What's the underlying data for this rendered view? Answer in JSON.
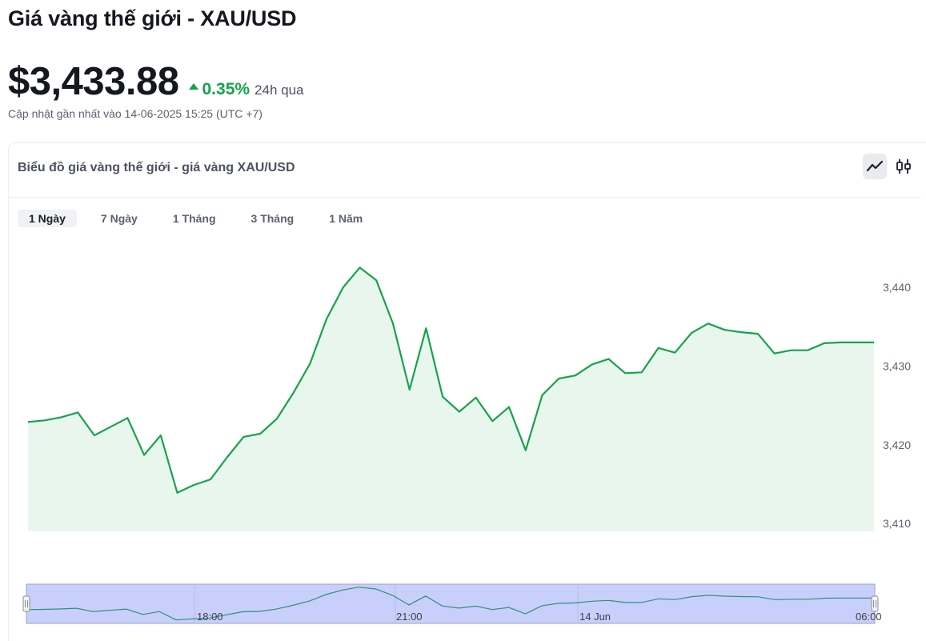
{
  "page": {
    "title": "Giá vàng thế giới - XAU/USD",
    "price": "$3,433.88",
    "change_pct": "0.35%",
    "change_period": "24h qua",
    "updated": "Cập nhật gần nhất vào 14-06-2025 15:25 (UTC +7)"
  },
  "card": {
    "title": "Biểu đồ giá vàng thế giới - giá vàng XAU/USD",
    "chart_types": [
      {
        "name": "line-chart-icon",
        "active": true
      },
      {
        "name": "candlestick-icon",
        "active": false
      }
    ],
    "ranges": [
      {
        "label": "1 Ngày",
        "active": true
      },
      {
        "label": "7 Ngày",
        "active": false
      },
      {
        "label": "1 Tháng",
        "active": false
      },
      {
        "label": "3 Tháng",
        "active": false
      },
      {
        "label": "1 Năm",
        "active": false
      }
    ]
  },
  "colors": {
    "line": "#16a34a",
    "area": "#e9f6ee",
    "navigator_fill": "#c9cffb",
    "navigator_line": "#2f8f7a"
  },
  "chart_data": {
    "type": "area",
    "title": "",
    "xlabel": "",
    "ylabel": "",
    "ylim": [
      3409,
      3446
    ],
    "y_ticks": [
      3410,
      3420,
      3430,
      3440
    ],
    "y_tick_labels": [
      "3,410",
      "3,420",
      "3,430",
      "3,440"
    ],
    "navigator_ticks": [
      "18:00",
      "21:00",
      "14 Jun",
      "06:00"
    ],
    "grid": false,
    "legend": "none",
    "values": [
      3422.9,
      3423.1,
      3423.5,
      3424.1,
      3421.2,
      3422.3,
      3423.4,
      3418.7,
      3421.2,
      3413.9,
      3414.9,
      3415.6,
      3418.4,
      3421.0,
      3421.4,
      3423.3,
      3426.6,
      3430.3,
      3436.0,
      3440.0,
      3442.5,
      3440.9,
      3435.4,
      3427.0,
      3434.8,
      3426.1,
      3424.2,
      3426.0,
      3423.0,
      3424.8,
      3419.3,
      3426.3,
      3428.4,
      3428.8,
      3430.2,
      3430.9,
      3429.1,
      3429.2,
      3432.3,
      3431.7,
      3434.2,
      3435.4,
      3434.6,
      3434.3,
      3434.1,
      3431.6,
      3432.0,
      3432.0,
      3432.9,
      3433.0,
      3433.0,
      3433.0
    ]
  }
}
